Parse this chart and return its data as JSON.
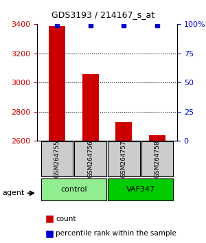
{
  "title": "GDS3193 / 214167_s_at",
  "samples": [
    "GSM264755",
    "GSM264756",
    "GSM264757",
    "GSM264758"
  ],
  "counts": [
    3390,
    3060,
    2730,
    2640
  ],
  "percentile_ranks": [
    99,
    99,
    99,
    99
  ],
  "ylim_left": [
    2600,
    3400
  ],
  "ylim_right": [
    0,
    100
  ],
  "yticks_left": [
    2600,
    2800,
    3000,
    3200,
    3400
  ],
  "yticks_right": [
    0,
    25,
    50,
    75,
    100
  ],
  "ytick_labels_right": [
    "0",
    "25",
    "50",
    "75",
    "100%"
  ],
  "bar_color": "#cc0000",
  "dot_color": "#0000cc",
  "groups": [
    {
      "label": "control",
      "samples": [
        0,
        1
      ],
      "color": "#90ee90"
    },
    {
      "label": "VAF347",
      "samples": [
        2,
        3
      ],
      "color": "#00cc00"
    }
  ],
  "legend_count_color": "#cc0000",
  "legend_dot_color": "#0000cc",
  "agent_label": "agent",
  "xlabel_rotation": 90,
  "bar_width": 0.5,
  "sample_box_color": "#cccccc",
  "background_color": "#ffffff",
  "plot_bg_color": "#ffffff",
  "grid_color": "#000000",
  "grid_linestyle": "dotted"
}
